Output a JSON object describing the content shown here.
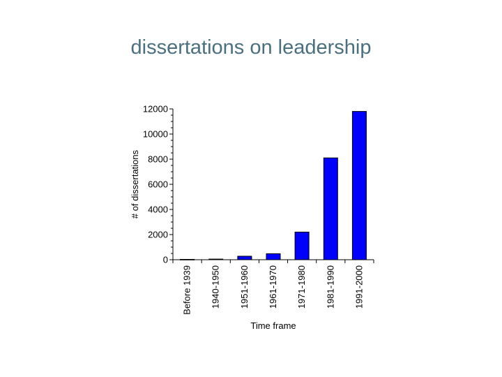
{
  "slide": {
    "title": "dissertations on leadership"
  },
  "chart_data": {
    "type": "bar",
    "title": "",
    "xlabel": "Time frame",
    "ylabel": "# of dissertations",
    "categories": [
      "Before 1939",
      "1940-1950",
      "1951-1960",
      "1961-1970",
      "1971-1980",
      "1981-1990",
      "1991-2000"
    ],
    "values": [
      30,
      50,
      280,
      480,
      2200,
      8100,
      11800
    ],
    "ylim": [
      0,
      12000
    ],
    "yticks": [
      0,
      2000,
      4000,
      6000,
      8000,
      10000,
      12000
    ],
    "ytick_labels": [
      "0",
      "2000",
      "4000",
      "6000",
      "8000",
      "10000",
      "12000"
    ],
    "bar_color": "#0000ff",
    "bar_edge_color": "#000000",
    "grid": false,
    "legend": "none"
  }
}
